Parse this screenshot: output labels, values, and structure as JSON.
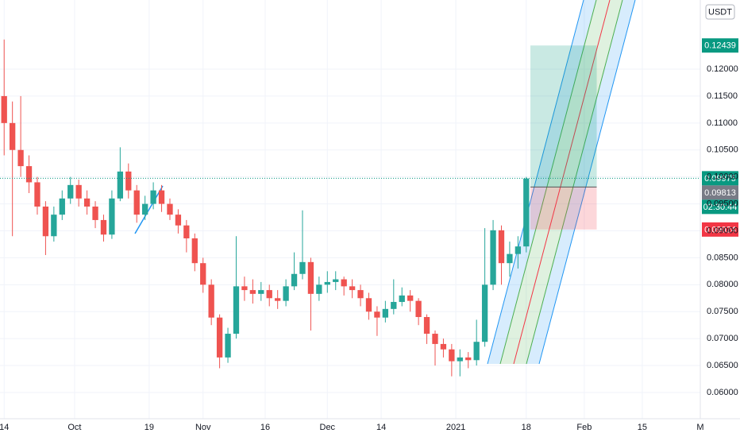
{
  "chart_data": {
    "type": "candlestick",
    "currency": "USDT",
    "x": [
      0,
      2,
      4,
      6,
      8,
      10,
      12,
      14,
      16,
      18,
      20,
      22,
      24,
      26,
      28,
      30,
      32,
      34,
      36,
      38,
      40,
      42,
      44,
      46,
      48,
      50,
      52,
      54,
      56,
      58,
      60,
      62,
      64,
      66,
      68,
      70,
      72,
      74,
      76,
      78,
      80,
      82,
      84,
      86,
      88,
      90,
      92,
      94,
      96,
      98,
      100,
      102,
      104,
      106,
      108,
      110,
      112,
      114,
      116,
      118,
      120,
      122,
      124,
      126
    ],
    "open": [
      0.115,
      0.11,
      0.105,
      0.102,
      0.099,
      0.0945,
      0.089,
      0.093,
      0.096,
      0.0985,
      0.096,
      0.0945,
      0.092,
      0.0893,
      0.096,
      0.101,
      0.0975,
      0.093,
      0.095,
      0.0975,
      0.095,
      0.093,
      0.091,
      0.0886,
      0.084,
      0.08,
      0.0739,
      0.0665,
      0.0709,
      0.0797,
      0.079,
      0.0783,
      0.079,
      0.0775,
      0.077,
      0.0797,
      0.082,
      0.0842,
      0.0783,
      0.08,
      0.0805,
      0.081,
      0.0797,
      0.079,
      0.0775,
      0.075,
      0.0739,
      0.0755,
      0.0768,
      0.078,
      0.077,
      0.074,
      0.0709,
      0.069,
      0.068,
      0.0658,
      0.0665,
      0.066,
      0.0694,
      0.08,
      0.0901,
      0.084,
      0.0857,
      0.0871
    ],
    "high": [
      0.1255,
      0.114,
      0.115,
      0.104,
      0.1,
      0.0955,
      0.0945,
      0.0975,
      0.1,
      0.0995,
      0.0975,
      0.0955,
      0.093,
      0.0975,
      0.1055,
      0.1025,
      0.0985,
      0.0965,
      0.099,
      0.0985,
      0.096,
      0.094,
      0.092,
      0.0895,
      0.085,
      0.081,
      0.0745,
      0.072,
      0.089,
      0.0815,
      0.081,
      0.0805,
      0.08,
      0.079,
      0.081,
      0.086,
      0.0938,
      0.085,
      0.0815,
      0.0825,
      0.0825,
      0.0815,
      0.081,
      0.08,
      0.0785,
      0.076,
      0.077,
      0.081,
      0.0795,
      0.079,
      0.0775,
      0.0745,
      0.0715,
      0.07,
      0.069,
      0.068,
      0.0675,
      0.0735,
      0.0905,
      0.092,
      0.091,
      0.088,
      0.089,
      0.1
    ],
    "low": [
      0.104,
      0.089,
      0.1,
      0.097,
      0.093,
      0.0855,
      0.088,
      0.092,
      0.095,
      0.0945,
      0.093,
      0.0905,
      0.088,
      0.0885,
      0.0955,
      0.096,
      0.0915,
      0.092,
      0.094,
      0.0935,
      0.092,
      0.0895,
      0.086,
      0.0825,
      0.0785,
      0.0725,
      0.0645,
      0.0655,
      0.07,
      0.077,
      0.0765,
      0.077,
      0.076,
      0.0755,
      0.076,
      0.079,
      0.081,
      0.0715,
      0.077,
      0.0785,
      0.079,
      0.078,
      0.0775,
      0.076,
      0.0735,
      0.0705,
      0.073,
      0.0745,
      0.076,
      0.075,
      0.0725,
      0.069,
      0.065,
      0.0665,
      0.063,
      0.063,
      0.0645,
      0.065,
      0.0685,
      0.079,
      0.08,
      0.0815,
      0.083,
      0.086
    ],
    "close": [
      0.11,
      0.105,
      0.102,
      0.099,
      0.0945,
      0.089,
      0.093,
      0.096,
      0.0985,
      0.096,
      0.0945,
      0.092,
      0.0893,
      0.096,
      0.101,
      0.0975,
      0.093,
      0.095,
      0.0975,
      0.095,
      0.093,
      0.091,
      0.0886,
      0.084,
      0.08,
      0.0739,
      0.0665,
      0.0709,
      0.0797,
      0.079,
      0.0783,
      0.079,
      0.0775,
      0.077,
      0.0797,
      0.082,
      0.0842,
      0.0783,
      0.08,
      0.0805,
      0.081,
      0.0797,
      0.079,
      0.0775,
      0.075,
      0.0739,
      0.0755,
      0.0768,
      0.078,
      0.077,
      0.074,
      0.0709,
      0.069,
      0.068,
      0.0658,
      0.0665,
      0.066,
      0.0694,
      0.08,
      0.0901,
      0.084,
      0.0857,
      0.0871,
      0.0997
    ],
    "up_color": "#26a69a",
    "down_color": "#ef5350",
    "xlim": [
      -1,
      168
    ],
    "ylim": [
      0.05513,
      0.13283
    ],
    "xticks": [
      {
        "value": 0,
        "label": "14"
      },
      {
        "value": 17,
        "label": "Oct"
      },
      {
        "value": 35,
        "label": "19"
      },
      {
        "value": 48,
        "label": "Nov"
      },
      {
        "value": 63,
        "label": "16"
      },
      {
        "value": 78,
        "label": "Dec"
      },
      {
        "value": 91,
        "label": "14"
      },
      {
        "value": 109,
        "label": "2021"
      },
      {
        "value": 126,
        "label": "18"
      },
      {
        "value": 140,
        "label": "Feb"
      },
      {
        "value": 154,
        "label": "15"
      },
      {
        "value": 168,
        "label": "M"
      }
    ],
    "yticks": [
      {
        "value": 0.06,
        "label": "0.06000"
      },
      {
        "value": 0.065,
        "label": "0.06500"
      },
      {
        "value": 0.07,
        "label": "0.07000"
      },
      {
        "value": 0.075,
        "label": "0.07500"
      },
      {
        "value": 0.08,
        "label": "0.08000"
      },
      {
        "value": 0.085,
        "label": "0.08500"
      },
      {
        "value": 0.09,
        "label": "0.09000"
      },
      {
        "value": 0.095,
        "label": "0.09500"
      },
      {
        "value": 0.1,
        "label": "0.10000"
      },
      {
        "value": 0.105,
        "label": "0.10500"
      },
      {
        "value": 0.11,
        "label": "0.11000"
      },
      {
        "value": 0.115,
        "label": "0.11500"
      },
      {
        "value": 0.12,
        "label": "0.12000"
      }
    ],
    "grid": true,
    "last_price": 0.09975,
    "countdown": "02:30:44",
    "position": {
      "target": 0.12439,
      "entry": 0.09813,
      "stop": 0.09024,
      "x_range": [
        127,
        143
      ]
    }
  }
}
